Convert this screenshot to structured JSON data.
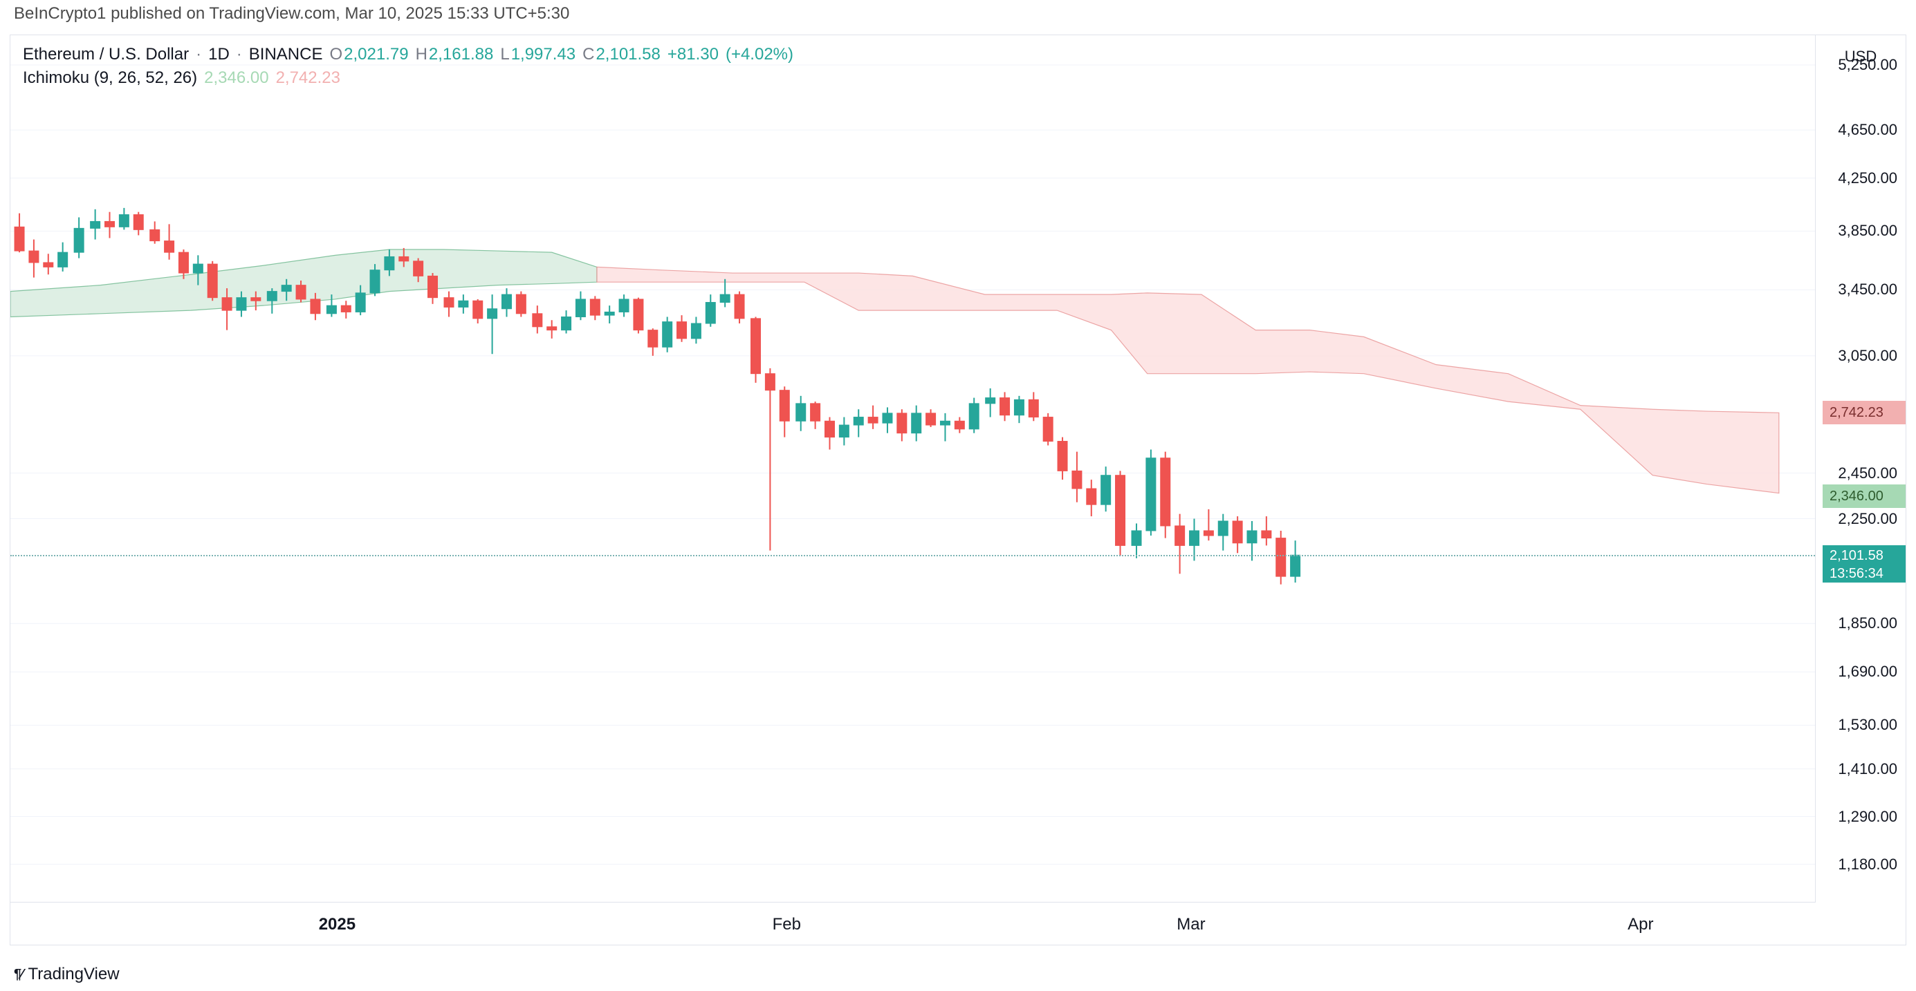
{
  "top_caption": "BeInCrypto1 published on TradingView.com, Mar 10, 2025 15:33 UTC+5:30",
  "legend": {
    "symbol": "Ethereum / U.S. Dollar",
    "interval": "1D",
    "exchange": "BINANCE",
    "O": "2,021.79",
    "H": "2,161.88",
    "L": "1,997.43",
    "C": "2,101.58",
    "change": "+81.30",
    "change_pct": "(+4.02%)",
    "indicator": "Ichimoku (9, 26, 52, 26)",
    "span_a": "2,346.00",
    "span_b": "2,742.23"
  },
  "axis": {
    "unit": "USD",
    "y_ticks": [
      "5,250.00",
      "4,650.00",
      "4,250.00",
      "3,850.00",
      "3,450.00",
      "3,050.00",
      "2,742.23",
      "2,450.00",
      "2,346.00",
      "2,250.00",
      "2,101.58",
      "1,850.00",
      "1,690.00",
      "1,530.00",
      "1,410.00",
      "1,290.00",
      "1,180.00"
    ],
    "y_tick_vals": [
      5250,
      4650,
      4250,
      3850,
      3450,
      3050,
      2742.23,
      2450,
      2346,
      2250,
      2101.58,
      1850,
      1690,
      1530,
      1410,
      1290,
      1180
    ],
    "y_min": 1100,
    "y_max": 5550,
    "log": true,
    "x_ticks": [
      {
        "label": "2025",
        "pos": 0.181,
        "bold": true
      },
      {
        "label": "Feb",
        "pos": 0.43,
        "bold": false
      },
      {
        "label": "Mar",
        "pos": 0.654,
        "bold": false
      },
      {
        "label": "Apr",
        "pos": 0.903,
        "bold": false
      }
    ]
  },
  "badges": {
    "span_b": {
      "val": "2,742.23",
      "color": "pale-red"
    },
    "span_a": {
      "val": "2,346.00",
      "color": "pale-green"
    },
    "price": {
      "val": "2,101.58",
      "countdown": "13:56:34",
      "color": "green"
    }
  },
  "colors": {
    "up": "#26a69a",
    "down": "#ef5350",
    "grid": "#f0f3fa",
    "border": "#e0e3eb",
    "cloud_green_fill": "#d9ede0",
    "cloud_red_fill": "#fde1e1"
  },
  "cloud_green": [
    [
      0.0,
      3440,
      3280
    ],
    [
      0.05,
      3480,
      3300
    ],
    [
      0.1,
      3550,
      3320
    ],
    [
      0.14,
      3610,
      3350
    ],
    [
      0.18,
      3680,
      3390
    ],
    [
      0.21,
      3720,
      3440
    ],
    [
      0.24,
      3720,
      3460
    ],
    [
      0.27,
      3710,
      3480
    ],
    [
      0.3,
      3700,
      3490
    ],
    [
      0.325,
      3600,
      3500
    ]
  ],
  "cloud_red": [
    [
      0.325,
      3500,
      3600
    ],
    [
      0.36,
      3500,
      3580
    ],
    [
      0.4,
      3500,
      3560
    ],
    [
      0.44,
      3500,
      3560
    ],
    [
      0.47,
      3320,
      3560
    ],
    [
      0.5,
      3320,
      3540
    ],
    [
      0.54,
      3320,
      3420
    ],
    [
      0.58,
      3320,
      3420
    ],
    [
      0.61,
      3200,
      3420
    ],
    [
      0.63,
      2950,
      3430
    ],
    [
      0.66,
      2950,
      3420
    ],
    [
      0.69,
      2950,
      3200
    ],
    [
      0.72,
      2960,
      3200
    ],
    [
      0.75,
      2950,
      3160
    ],
    [
      0.79,
      2870,
      3000
    ],
    [
      0.83,
      2800,
      2950
    ],
    [
      0.87,
      2760,
      2780
    ],
    [
      0.91,
      2440,
      2760
    ],
    [
      0.94,
      2400,
      2750
    ],
    [
      0.98,
      2360,
      2742
    ]
  ],
  "candles": [
    [
      0.005,
      3880,
      3980,
      3700,
      3710,
      "d"
    ],
    [
      0.013,
      3710,
      3790,
      3530,
      3630,
      "d"
    ],
    [
      0.021,
      3630,
      3690,
      3550,
      3600,
      "d"
    ],
    [
      0.029,
      3600,
      3770,
      3570,
      3700,
      "u"
    ],
    [
      0.038,
      3700,
      3950,
      3660,
      3870,
      "u"
    ],
    [
      0.047,
      3870,
      4010,
      3790,
      3920,
      "u"
    ],
    [
      0.055,
      3920,
      3990,
      3800,
      3880,
      "d"
    ],
    [
      0.063,
      3880,
      4020,
      3860,
      3970,
      "u"
    ],
    [
      0.071,
      3970,
      3990,
      3820,
      3860,
      "d"
    ],
    [
      0.08,
      3860,
      3920,
      3760,
      3780,
      "d"
    ],
    [
      0.088,
      3780,
      3900,
      3650,
      3700,
      "d"
    ],
    [
      0.096,
      3700,
      3720,
      3520,
      3560,
      "d"
    ],
    [
      0.104,
      3560,
      3680,
      3480,
      3620,
      "u"
    ],
    [
      0.112,
      3620,
      3640,
      3380,
      3400,
      "d"
    ],
    [
      0.12,
      3400,
      3460,
      3200,
      3320,
      "d"
    ],
    [
      0.128,
      3320,
      3440,
      3280,
      3400,
      "u"
    ],
    [
      0.136,
      3400,
      3440,
      3320,
      3380,
      "d"
    ],
    [
      0.145,
      3380,
      3460,
      3300,
      3440,
      "u"
    ],
    [
      0.153,
      3440,
      3520,
      3380,
      3480,
      "u"
    ],
    [
      0.161,
      3480,
      3510,
      3370,
      3390,
      "d"
    ],
    [
      0.169,
      3390,
      3430,
      3260,
      3300,
      "d"
    ],
    [
      0.178,
      3300,
      3420,
      3280,
      3350,
      "u"
    ],
    [
      0.186,
      3350,
      3380,
      3270,
      3310,
      "d"
    ],
    [
      0.194,
      3310,
      3480,
      3290,
      3430,
      "u"
    ],
    [
      0.202,
      3430,
      3620,
      3410,
      3580,
      "u"
    ],
    [
      0.21,
      3580,
      3720,
      3540,
      3670,
      "u"
    ],
    [
      0.218,
      3670,
      3730,
      3600,
      3640,
      "d"
    ],
    [
      0.226,
      3640,
      3660,
      3500,
      3540,
      "d"
    ],
    [
      0.234,
      3540,
      3560,
      3360,
      3400,
      "d"
    ],
    [
      0.243,
      3400,
      3440,
      3280,
      3340,
      "d"
    ],
    [
      0.251,
      3340,
      3420,
      3300,
      3380,
      "u"
    ],
    [
      0.259,
      3380,
      3390,
      3240,
      3270,
      "d"
    ],
    [
      0.267,
      3270,
      3420,
      3060,
      3330,
      "u"
    ],
    [
      0.275,
      3330,
      3460,
      3280,
      3420,
      "u"
    ],
    [
      0.283,
      3420,
      3440,
      3280,
      3300,
      "d"
    ],
    [
      0.292,
      3300,
      3350,
      3180,
      3220,
      "d"
    ],
    [
      0.3,
      3220,
      3260,
      3150,
      3200,
      "d"
    ],
    [
      0.308,
      3200,
      3320,
      3180,
      3280,
      "u"
    ],
    [
      0.316,
      3280,
      3440,
      3260,
      3390,
      "u"
    ],
    [
      0.324,
      3390,
      3410,
      3260,
      3290,
      "d"
    ],
    [
      0.332,
      3290,
      3350,
      3240,
      3310,
      "u"
    ],
    [
      0.34,
      3310,
      3420,
      3280,
      3390,
      "u"
    ],
    [
      0.348,
      3390,
      3400,
      3180,
      3200,
      "d"
    ],
    [
      0.356,
      3200,
      3210,
      3050,
      3100,
      "d"
    ],
    [
      0.364,
      3100,
      3280,
      3070,
      3250,
      "u"
    ],
    [
      0.372,
      3250,
      3290,
      3130,
      3150,
      "d"
    ],
    [
      0.38,
      3150,
      3280,
      3120,
      3240,
      "u"
    ],
    [
      0.388,
      3240,
      3420,
      3220,
      3370,
      "u"
    ],
    [
      0.396,
      3370,
      3520,
      3340,
      3420,
      "u"
    ],
    [
      0.404,
      3420,
      3440,
      3240,
      3270,
      "d"
    ],
    [
      0.413,
      3270,
      3280,
      2900,
      2950,
      "d"
    ],
    [
      0.421,
      2950,
      2980,
      2120,
      2860,
      "d"
    ],
    [
      0.429,
      2860,
      2880,
      2620,
      2700,
      "d"
    ],
    [
      0.438,
      2700,
      2830,
      2650,
      2790,
      "u"
    ],
    [
      0.446,
      2790,
      2800,
      2660,
      2700,
      "d"
    ],
    [
      0.454,
      2700,
      2720,
      2560,
      2620,
      "d"
    ],
    [
      0.462,
      2620,
      2720,
      2580,
      2680,
      "u"
    ],
    [
      0.47,
      2680,
      2760,
      2620,
      2720,
      "u"
    ],
    [
      0.478,
      2720,
      2780,
      2660,
      2690,
      "d"
    ],
    [
      0.486,
      2690,
      2770,
      2640,
      2740,
      "u"
    ],
    [
      0.494,
      2740,
      2760,
      2600,
      2640,
      "d"
    ],
    [
      0.502,
      2640,
      2780,
      2600,
      2740,
      "u"
    ],
    [
      0.51,
      2740,
      2760,
      2670,
      2680,
      "d"
    ],
    [
      0.518,
      2680,
      2740,
      2600,
      2700,
      "u"
    ],
    [
      0.526,
      2700,
      2720,
      2640,
      2660,
      "d"
    ],
    [
      0.534,
      2660,
      2820,
      2640,
      2790,
      "u"
    ],
    [
      0.543,
      2790,
      2870,
      2720,
      2820,
      "u"
    ],
    [
      0.551,
      2820,
      2850,
      2700,
      2730,
      "d"
    ],
    [
      0.559,
      2730,
      2830,
      2690,
      2810,
      "u"
    ],
    [
      0.567,
      2810,
      2850,
      2700,
      2720,
      "d"
    ],
    [
      0.575,
      2720,
      2740,
      2580,
      2600,
      "d"
    ],
    [
      0.583,
      2600,
      2620,
      2420,
      2460,
      "d"
    ],
    [
      0.591,
      2460,
      2550,
      2320,
      2380,
      "d"
    ],
    [
      0.599,
      2380,
      2420,
      2260,
      2310,
      "d"
    ],
    [
      0.607,
      2310,
      2480,
      2280,
      2440,
      "u"
    ],
    [
      0.615,
      2440,
      2460,
      2100,
      2140,
      "d"
    ],
    [
      0.624,
      2140,
      2230,
      2090,
      2200,
      "u"
    ],
    [
      0.632,
      2200,
      2560,
      2180,
      2520,
      "u"
    ],
    [
      0.64,
      2520,
      2550,
      2170,
      2220,
      "d"
    ],
    [
      0.648,
      2220,
      2270,
      2030,
      2140,
      "d"
    ],
    [
      0.656,
      2140,
      2250,
      2080,
      2200,
      "u"
    ],
    [
      0.664,
      2200,
      2290,
      2160,
      2180,
      "d"
    ],
    [
      0.672,
      2180,
      2270,
      2120,
      2240,
      "u"
    ],
    [
      0.68,
      2240,
      2260,
      2110,
      2150,
      "d"
    ],
    [
      0.688,
      2150,
      2240,
      2080,
      2200,
      "u"
    ],
    [
      0.696,
      2200,
      2260,
      2140,
      2170,
      "d"
    ],
    [
      0.704,
      2170,
      2200,
      1990,
      2020,
      "d"
    ],
    [
      0.712,
      2020,
      2160,
      1997,
      2102,
      "u"
    ]
  ],
  "branding": "TradingView"
}
